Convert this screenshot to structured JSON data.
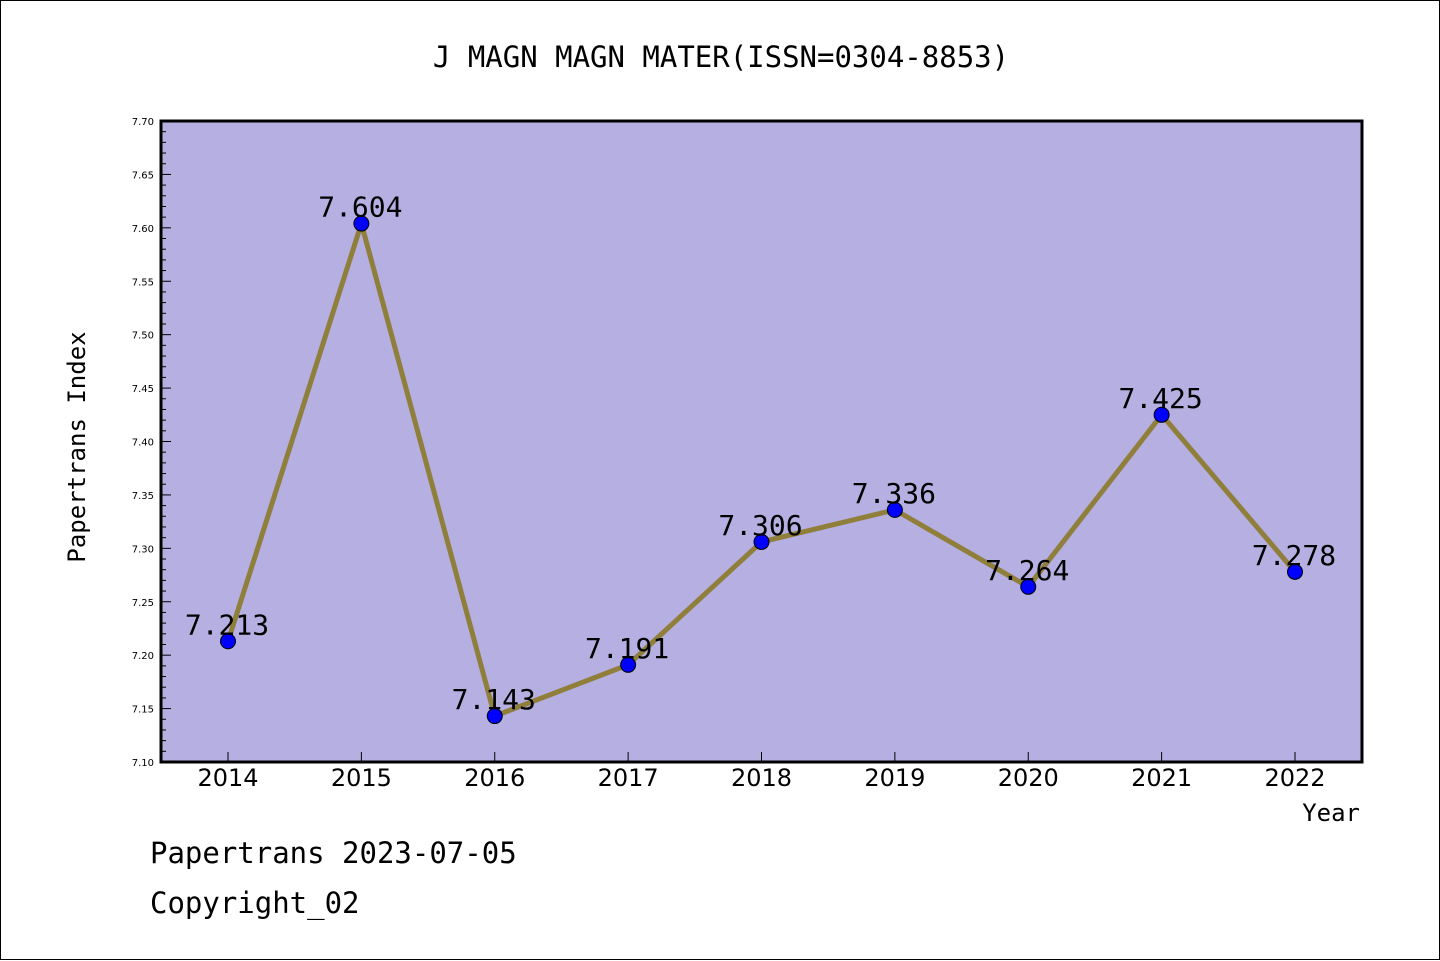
{
  "chart_data": {
    "type": "line",
    "title": "J MAGN MAGN MATER(ISSN=0304-8853)",
    "xlabel": "Year",
    "ylabel": "Papertrans Index",
    "categories": [
      "2014",
      "2015",
      "2016",
      "2017",
      "2018",
      "2019",
      "2020",
      "2021",
      "2022"
    ],
    "values": [
      7.213,
      7.604,
      7.143,
      7.191,
      7.306,
      7.336,
      7.264,
      7.425,
      7.278
    ],
    "data_labels": [
      "7.213",
      "7.604",
      "7.143",
      "7.191",
      "7.306",
      "7.336",
      "7.264",
      "7.425",
      "7.278"
    ],
    "ylim": [
      7.1,
      7.7
    ],
    "yticks": [
      "7.10",
      "7.15",
      "7.20",
      "7.25",
      "7.30",
      "7.35",
      "7.40",
      "7.45",
      "7.50",
      "7.55",
      "7.60",
      "7.65",
      "7.70"
    ],
    "grid": false,
    "colors": {
      "plot_background": "#b5afe2",
      "line": "#8f7f3a",
      "marker": "#0000ff"
    }
  },
  "footer": {
    "line1": "Papertrans 2023-07-05",
    "line2": "Copyright_02"
  }
}
